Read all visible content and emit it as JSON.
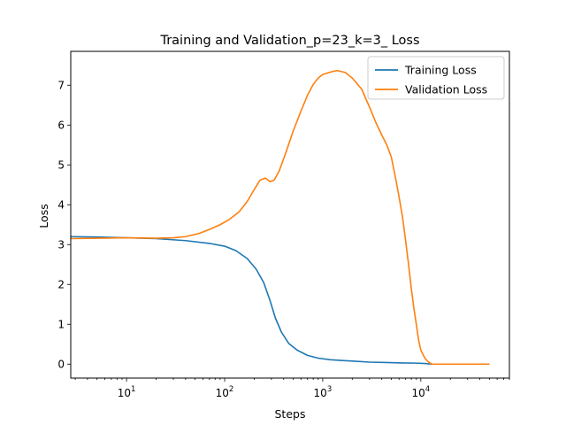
{
  "chart_data": {
    "type": "line",
    "title": "Training and Validation_p=23_k=3_ Loss",
    "xlabel": "Steps",
    "ylabel": "Loss",
    "xscale": "log",
    "xlim": [
      2.7,
      80000
    ],
    "ylim": [
      -0.35,
      7.85
    ],
    "x_ticks": [
      {
        "value": 10,
        "base": "10",
        "exp": "1"
      },
      {
        "value": 100,
        "base": "10",
        "exp": "2"
      },
      {
        "value": 1000,
        "base": "10",
        "exp": "3"
      },
      {
        "value": 10000,
        "base": "10",
        "exp": "4"
      }
    ],
    "y_ticks": [
      0,
      1,
      2,
      3,
      4,
      5,
      6,
      7
    ],
    "grid": false,
    "legend_position": "top-right",
    "series": [
      {
        "name": "Training Loss",
        "color": "#1f77b4",
        "points": [
          [
            2.7,
            3.2
          ],
          [
            5,
            3.19
          ],
          [
            10,
            3.17
          ],
          [
            20,
            3.15
          ],
          [
            40,
            3.1
          ],
          [
            70,
            3.03
          ],
          [
            100,
            2.96
          ],
          [
            130,
            2.85
          ],
          [
            170,
            2.65
          ],
          [
            210,
            2.38
          ],
          [
            250,
            2.05
          ],
          [
            290,
            1.6
          ],
          [
            330,
            1.15
          ],
          [
            380,
            0.8
          ],
          [
            450,
            0.52
          ],
          [
            550,
            0.35
          ],
          [
            700,
            0.22
          ],
          [
            900,
            0.15
          ],
          [
            1200,
            0.11
          ],
          [
            1600,
            0.09
          ],
          [
            2200,
            0.07
          ],
          [
            3000,
            0.05
          ],
          [
            4500,
            0.04
          ],
          [
            6500,
            0.03
          ],
          [
            9000,
            0.025
          ],
          [
            11000,
            0.015
          ],
          [
            13000,
            0.0
          ],
          [
            20000,
            0.0
          ],
          [
            50000,
            0.0
          ]
        ]
      },
      {
        "name": "Validation Loss",
        "color": "#ff7f0e",
        "points": [
          [
            2.7,
            3.15
          ],
          [
            5,
            3.16
          ],
          [
            10,
            3.17
          ],
          [
            20,
            3.16
          ],
          [
            30,
            3.17
          ],
          [
            40,
            3.2
          ],
          [
            55,
            3.28
          ],
          [
            70,
            3.38
          ],
          [
            90,
            3.5
          ],
          [
            110,
            3.62
          ],
          [
            140,
            3.82
          ],
          [
            170,
            4.08
          ],
          [
            200,
            4.38
          ],
          [
            230,
            4.62
          ],
          [
            260,
            4.67
          ],
          [
            290,
            4.58
          ],
          [
            320,
            4.62
          ],
          [
            360,
            4.85
          ],
          [
            420,
            5.3
          ],
          [
            500,
            5.85
          ],
          [
            600,
            6.35
          ],
          [
            700,
            6.75
          ],
          [
            800,
            7.02
          ],
          [
            900,
            7.18
          ],
          [
            1000,
            7.27
          ],
          [
            1200,
            7.33
          ],
          [
            1400,
            7.37
          ],
          [
            1700,
            7.32
          ],
          [
            2000,
            7.18
          ],
          [
            2500,
            6.9
          ],
          [
            3000,
            6.45
          ],
          [
            3500,
            6.05
          ],
          [
            4000,
            5.75
          ],
          [
            4500,
            5.5
          ],
          [
            5000,
            5.2
          ],
          [
            5500,
            4.7
          ],
          [
            6000,
            4.2
          ],
          [
            6500,
            3.7
          ],
          [
            7000,
            3.1
          ],
          [
            7500,
            2.5
          ],
          [
            8000,
            1.9
          ],
          [
            8500,
            1.4
          ],
          [
            9000,
            1.0
          ],
          [
            9500,
            0.6
          ],
          [
            10000,
            0.35
          ],
          [
            11000,
            0.15
          ],
          [
            12000,
            0.05
          ],
          [
            13000,
            0.0
          ],
          [
            20000,
            0.0
          ],
          [
            50000,
            0.0
          ]
        ]
      }
    ]
  }
}
